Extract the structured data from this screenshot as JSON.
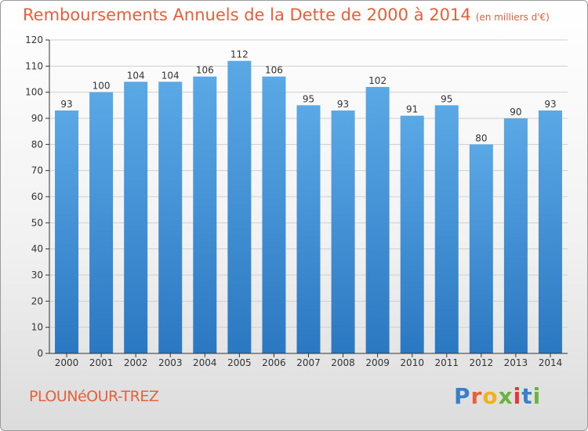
{
  "title": "Remboursements Annuels de la Dette de 2000 à 2014",
  "unit_note": "(en milliers d'€)",
  "commune": "PLOUNéOUR-TREZ",
  "logo": {
    "letters": [
      "P",
      "r",
      "o",
      "x",
      "i",
      "t",
      "i"
    ],
    "colors": [
      "#3a7fc8",
      "#e8603a",
      "#f2b21a",
      "#6cb33f",
      "#e23a3a",
      "#3a7fc8",
      "#6cb33f"
    ]
  },
  "colors": {
    "bar_top": "#5ba8e6",
    "bar_bottom": "#2b78c2",
    "axis": "#333333",
    "grid": "#cfcfcf",
    "title": "#e8603a"
  },
  "chart_data": {
    "type": "bar",
    "title": "Remboursements Annuels de la Dette de 2000 à 2014",
    "xlabel": "",
    "ylabel": "",
    "categories": [
      "2000",
      "2001",
      "2002",
      "2003",
      "2004",
      "2005",
      "2006",
      "2007",
      "2008",
      "2009",
      "2010",
      "2011",
      "2012",
      "2013",
      "2014"
    ],
    "values": [
      93,
      100,
      104,
      104,
      106,
      112,
      106,
      95,
      93,
      102,
      91,
      95,
      80,
      90,
      93
    ],
    "ylim": [
      0,
      120
    ],
    "yticks": [
      0,
      10,
      20,
      30,
      40,
      50,
      60,
      70,
      80,
      90,
      100,
      110,
      120
    ],
    "grid": true,
    "data_labels": true
  }
}
